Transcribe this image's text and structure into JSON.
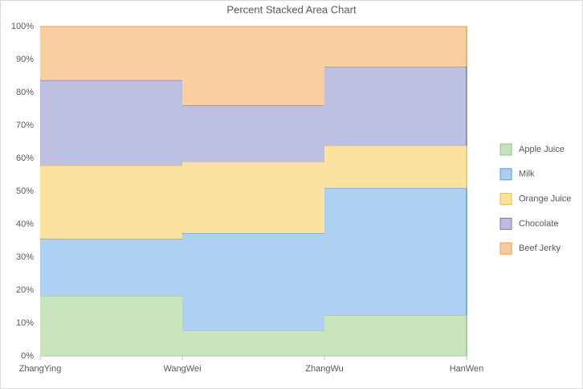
{
  "chart_data": {
    "type": "step_area_percent",
    "title": "Percent Stacked Area Chart",
    "categories": [
      "ZhangYing",
      "WangWei",
      "ZhangWu",
      "HanWen"
    ],
    "series": [
      {
        "name": "Apple Juice",
        "color": "#c5e3b8",
        "line": "#8fc678",
        "values": [
          18.3,
          7.8,
          12.4,
          12.4
        ]
      },
      {
        "name": "Milk",
        "color": "#aacdf1",
        "line": "#5b9bd5",
        "values": [
          17.3,
          29.5,
          38.6,
          38.6
        ]
      },
      {
        "name": "Orange Juice",
        "color": "#fbe29a",
        "line": "#e2bd55",
        "values": [
          22.2,
          21.7,
          12.9,
          12.9
        ]
      },
      {
        "name": "Chocolate",
        "color": "#babde0",
        "line": "#7579b8",
        "values": [
          25.9,
          17.1,
          23.9,
          23.9
        ]
      },
      {
        "name": "Beef Jerky",
        "color": "#f8cc9a",
        "line": "#ef9d4a",
        "values": [
          16.3,
          23.9,
          12.2,
          12.2
        ]
      }
    ],
    "ylim": [
      0,
      100
    ],
    "yticks": [
      {
        "value": 0,
        "label": "0%"
      },
      {
        "value": 10,
        "label": "10%"
      },
      {
        "value": 20,
        "label": "20%"
      },
      {
        "value": 30,
        "label": "30%"
      },
      {
        "value": 40,
        "label": "40%"
      },
      {
        "value": 50,
        "label": "50%"
      },
      {
        "value": 60,
        "label": "60%"
      },
      {
        "value": 70,
        "label": "70%"
      },
      {
        "value": 80,
        "label": "80%"
      },
      {
        "value": 90,
        "label": "90%"
      },
      {
        "value": 100,
        "label": "100%"
      }
    ],
    "grid": true,
    "legend": "right"
  }
}
